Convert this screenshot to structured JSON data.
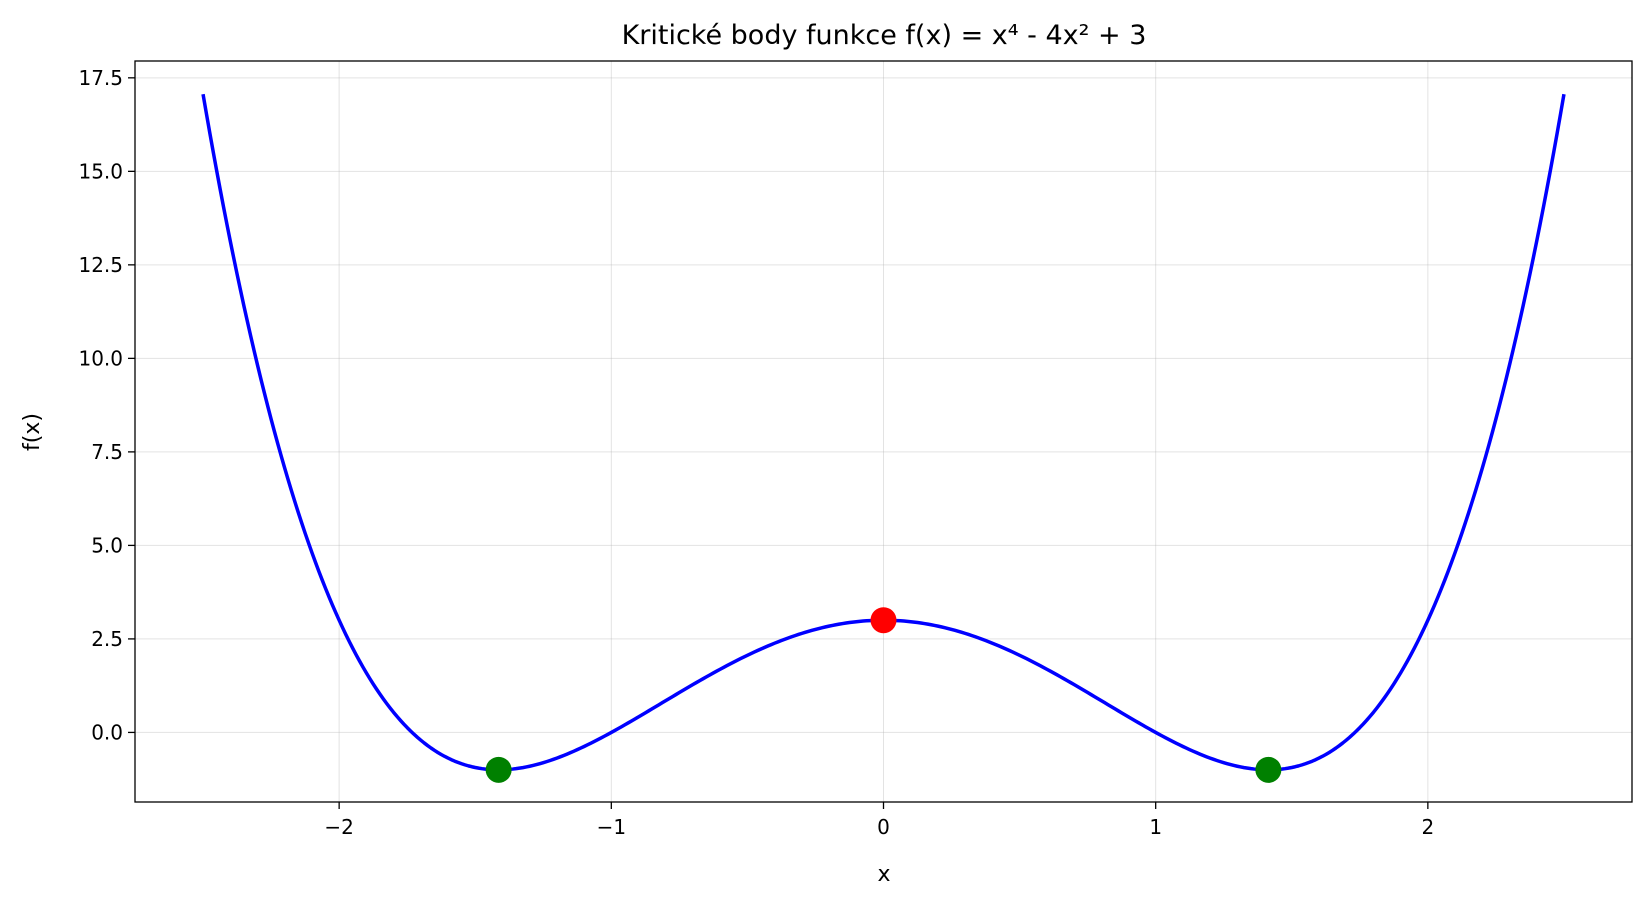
{
  "chart_data": {
    "type": "line",
    "title": "Kritické body funkce f(x) = x⁴ - 4x² + 3",
    "xlabel": "x",
    "ylabel": "f(x)",
    "xlim": [
      -2.75,
      2.75
    ],
    "ylim": [
      -1.86,
      17.95
    ],
    "grid": true,
    "x_ticks": [
      -2,
      -1,
      0,
      1,
      2
    ],
    "x_tick_labels": [
      "−2",
      "−1",
      "0",
      "1",
      "2"
    ],
    "y_ticks": [
      0,
      2.5,
      5,
      7.5,
      10,
      12.5,
      15,
      17.5
    ],
    "y_tick_labels": [
      "0.0",
      "2.5",
      "5.0",
      "7.5",
      "10.0",
      "12.5",
      "15.0",
      "17.5"
    ],
    "series": [
      {
        "function": "x^4 - 4x^2 + 3",
        "x_range": [
          -2.5,
          2.5
        ],
        "color": "#0000ff"
      }
    ],
    "points": [
      {
        "x": -1.414,
        "y": -1,
        "color": "#008000"
      },
      {
        "x": 0,
        "y": 3,
        "color": "#ff0000"
      },
      {
        "x": 1.414,
        "y": -1,
        "color": "#008000"
      }
    ]
  }
}
